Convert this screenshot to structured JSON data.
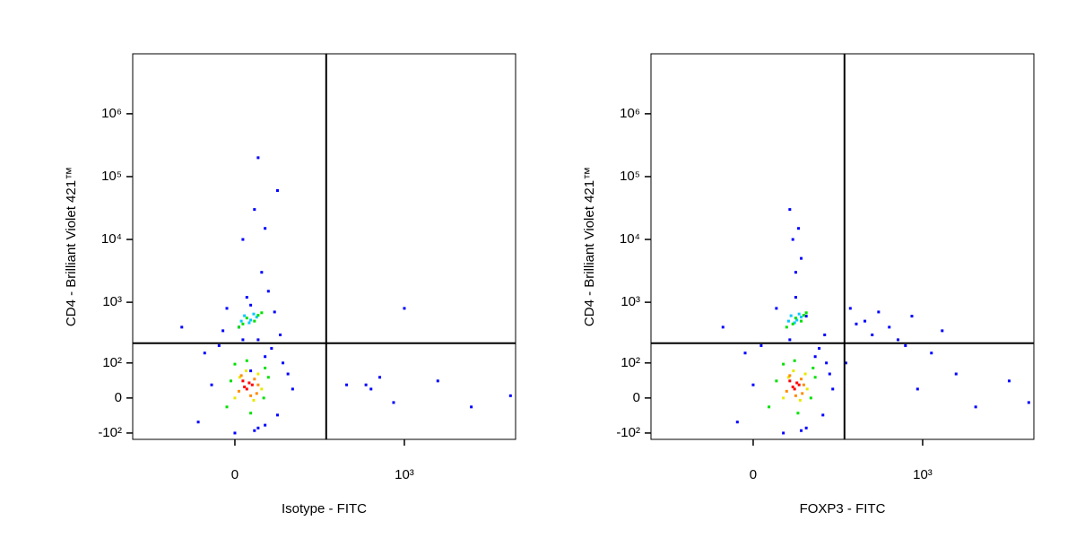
{
  "chart_data": [
    {
      "type": "scatter",
      "x_label": "Isotype - FITC",
      "y_label": "CD4 - Brilliant Violet 421™",
      "xscale": "biexponential",
      "yscale": "biexponential",
      "xlim": [
        -245,
        10000
      ],
      "ylim": [
        -130,
        9000000
      ],
      "xticks": [
        0,
        {
          "value": 1000,
          "label": "10³"
        }
      ],
      "yticks": [
        {
          "value": -100,
          "label": "-10²"
        },
        0,
        {
          "value": 100,
          "label": "10²"
        },
        {
          "value": 1000,
          "label": "10³"
        },
        {
          "value": 10000,
          "label": "10⁴"
        },
        {
          "value": 100000,
          "label": "10⁵"
        },
        {
          "value": 1000000,
          "label": "10⁶"
        }
      ],
      "gate_x": 194,
      "gate_y": 219,
      "series": [
        {
          "color": "#0000ff",
          "x": [
            -50,
            60,
            70,
            -40,
            30,
            -20,
            80,
            10,
            50,
            -30,
            0,
            40,
            25,
            15,
            -10,
            65,
            30,
            20,
            45,
            5,
            55,
            -15,
            35,
            10,
            25,
            30,
            40,
            20,
            300,
            500,
            800,
            2000,
            4000,
            9000,
            1000,
            600,
            450,
            60,
            40,
            -80,
            90
          ],
          "y": [
            -60,
            -40,
            100,
            150,
            -80,
            200,
            60,
            250,
            180,
            30,
            -100,
            130,
            -90,
            1200,
            800,
            300,
            250,
            900,
            1500,
            400,
            700,
            350,
            3000,
            10000,
            30000,
            200000,
            -70,
            70,
            30,
            20,
            -10,
            40,
            -20,
            5,
            800,
            50,
            30,
            60000,
            15000,
            400,
            20
          ]
        },
        {
          "color": "#00c8ff",
          "x": [
            20,
            18,
            28,
            12,
            24,
            8
          ],
          "y": [
            520,
            470,
            580,
            610,
            650,
            500
          ]
        },
        {
          "color": "#00e000",
          "x": [
            -10,
            40,
            15,
            38,
            -5,
            20,
            45,
            0,
            10,
            25,
            30,
            15,
            5,
            35
          ],
          "y": [
            -20,
            80,
            110,
            0,
            40,
            -35,
            50,
            95,
            450,
            500,
            620,
            560,
            400,
            680
          ]
        },
        {
          "color": "#e8e800",
          "x": [
            0,
            30,
            14,
            24,
            6,
            35
          ],
          "y": [
            0,
            60,
            70,
            -5,
            50,
            20
          ]
        },
        {
          "color": "#ff8c00",
          "x": [
            5,
            25,
            28,
            8,
            20,
            30
          ],
          "y": [
            15,
            45,
            10,
            55,
            5,
            30
          ]
        },
        {
          "color": "#ff0000",
          "x": [
            12,
            18,
            15,
            22,
            10
          ],
          "y": [
            25,
            35,
            20,
            30,
            40
          ]
        }
      ]
    },
    {
      "type": "scatter",
      "x_label": "FOXP3 - FITC",
      "y_label": "CD4 - Brilliant Violet 421™",
      "xscale": "biexponential",
      "yscale": "biexponential",
      "xlim": [
        -245,
        10000
      ],
      "ylim": [
        -130,
        9000000
      ],
      "xticks": [
        0,
        {
          "value": 1000,
          "label": "10³"
        }
      ],
      "yticks": [
        {
          "value": -100,
          "label": "-10²"
        },
        0,
        {
          "value": 100,
          "label": "10²"
        },
        {
          "value": 1000,
          "label": "10³"
        },
        {
          "value": 10000,
          "label": "10⁴"
        },
        {
          "value": 100000,
          "label": "10⁵"
        },
        {
          "value": 1000000,
          "label": "10⁶"
        }
      ],
      "gate_x": 194,
      "gate_y": 219,
      "series": [
        {
          "color": "#0000ff",
          "x": [
            -20,
            120,
            130,
            -10,
            80,
            10,
            140,
            50,
            110,
            0,
            40,
            100,
            70,
            60,
            30,
            125,
            300,
            500,
            800,
            400,
            1500,
            250,
            60,
            55,
            50,
            70,
            65,
            600,
            1200,
            3000,
            6000,
            9000,
            350,
            200,
            700,
            900,
            2000,
            220,
            80,
            -40,
            150
          ],
          "y": [
            -60,
            -40,
            100,
            150,
            -80,
            200,
            60,
            250,
            180,
            30,
            -100,
            130,
            -90,
            1200,
            800,
            300,
            500,
            400,
            600,
            700,
            350,
            450,
            3000,
            10000,
            30000,
            5000,
            15000,
            250,
            150,
            -20,
            40,
            -10,
            300,
            100,
            200,
            20,
            60,
            800,
            600,
            400,
            20
          ]
        },
        {
          "color": "#00c8ff",
          "x": [
            62,
            58,
            70,
            52,
            66,
            48
          ],
          "y": [
            520,
            470,
            580,
            610,
            650,
            500
          ]
        },
        {
          "color": "#00e000",
          "x": [
            20,
            95,
            58,
            90,
            30,
            64,
            100,
            40,
            55,
            70,
            75,
            60,
            45,
            80
          ],
          "y": [
            -20,
            80,
            110,
            0,
            40,
            -35,
            50,
            95,
            450,
            500,
            620,
            560,
            400,
            680
          ]
        },
        {
          "color": "#e8e800",
          "x": [
            40,
            78,
            56,
            68,
            48,
            82
          ],
          "y": [
            0,
            60,
            70,
            -5,
            50,
            20
          ]
        },
        {
          "color": "#ff8c00",
          "x": [
            45,
            70,
            72,
            50,
            60,
            75
          ],
          "y": [
            15,
            45,
            10,
            55,
            5,
            30
          ]
        },
        {
          "color": "#ff0000",
          "x": [
            55,
            62,
            58,
            66,
            50
          ],
          "y": [
            25,
            35,
            20,
            30,
            40
          ]
        }
      ]
    }
  ]
}
